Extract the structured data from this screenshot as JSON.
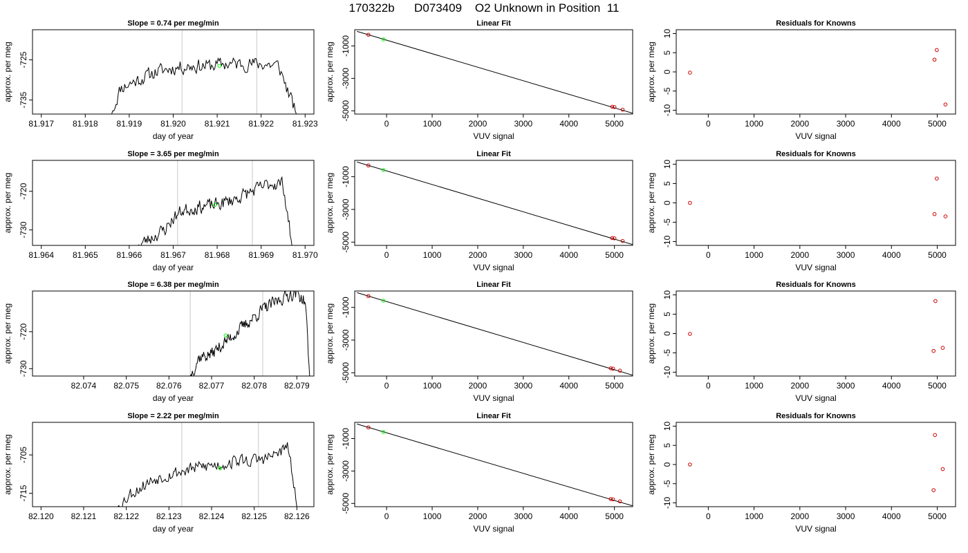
{
  "figure": {
    "title": "170322b      D073409    O2 Unknown in Position  11"
  },
  "chart_data": [
    {
      "type": "line",
      "title": "Slope =  0.74  per meg/min",
      "xlabel": "day of year",
      "ylabel": "approx. per meg",
      "xlim": [
        81.9168,
        81.9232
      ],
      "ylim": [
        -738.5,
        -717.5
      ],
      "xticks": [
        81.917,
        81.918,
        81.919,
        81.92,
        81.921,
        81.922,
        81.923
      ],
      "xtick_labels": [
        "81.917",
        "81.918",
        "81.919",
        "81.920",
        "81.921",
        "81.922",
        "81.923"
      ],
      "yticks": [
        -735,
        -725
      ],
      "ytick_labels": [
        "-735",
        "-725"
      ],
      "vlines": [
        81.9202,
        81.9219
      ],
      "trace": {
        "start": 81.9186,
        "end": 81.9228,
        "entry": -738.5,
        "exit": -738.5,
        "low": -731,
        "high": -724,
        "mid": -727.5,
        "seed": 11,
        "x": [
          81.9186,
          81.9188,
          81.9192,
          81.9196,
          81.92,
          81.9204,
          81.9208,
          81.9212,
          81.9216,
          81.922,
          81.9224,
          81.9228
        ],
        "y": [
          -738.5,
          -732,
          -730,
          -728,
          -727,
          -726.5,
          -726.5,
          -726,
          -726,
          -726,
          -726.5,
          -738.5
        ]
      },
      "marker": {
        "x": 81.92105,
        "y": -726.5,
        "color": "#00ff00"
      }
    },
    {
      "type": "scatter",
      "title": "Linear Fit",
      "xlabel": "VUV signal",
      "ylabel": "approx. per meg",
      "xlim": [
        -700,
        5400
      ],
      "ylim": [
        -5200,
        0
      ],
      "xticks": [
        0,
        1000,
        2000,
        3000,
        4000,
        5000
      ],
      "xtick_labels": [
        "0",
        "1000",
        "2000",
        "3000",
        "4000",
        "5000"
      ],
      "yticks": [
        -1000,
        -3000,
        -5000
      ],
      "ytick_labels": [
        "-1000",
        "-3000",
        "-5000"
      ],
      "fit_line": [
        [
          -650,
          -100
        ],
        [
          5400,
          -5150
        ]
      ],
      "known_points": [
        [
          -400,
          -310
        ],
        [
          4950,
          -4750
        ],
        [
          5000,
          -4770
        ],
        [
          5180,
          -4930
        ]
      ],
      "unknown_point": [
        -70,
        -595
      ],
      "known_color": "#cc0000",
      "unknown_color": "#00ff00"
    },
    {
      "type": "scatter",
      "title": "Residuals for Knowns",
      "xlabel": "VUV signal",
      "ylabel": "approx. per meg",
      "xlim": [
        -700,
        5400
      ],
      "ylim": [
        -11,
        11
      ],
      "xticks": [
        0,
        1000,
        2000,
        3000,
        4000,
        5000
      ],
      "xtick_labels": [
        "0",
        "1000",
        "2000",
        "3000",
        "4000",
        "5000"
      ],
      "yticks": [
        -10,
        -5,
        0,
        5,
        10
      ],
      "ytick_labels": [
        "-10",
        "-5",
        "0",
        "5",
        "10"
      ],
      "points": [
        [
          -400,
          -0.2
        ],
        [
          4940,
          3.2
        ],
        [
          4990,
          5.7
        ],
        [
          5180,
          -8.5
        ]
      ],
      "color": "#cc0000"
    },
    {
      "type": "line",
      "title": "Slope =  3.65  per meg/min",
      "xlabel": "day of year",
      "ylabel": "approx. per meg",
      "xlim": [
        81.9638,
        81.9702
      ],
      "ylim": [
        -734,
        -712
      ],
      "xticks": [
        81.964,
        81.965,
        81.966,
        81.967,
        81.968,
        81.969,
        81.97
      ],
      "xtick_labels": [
        "81.964",
        "81.965",
        "81.966",
        "81.967",
        "81.968",
        "81.969",
        "81.970"
      ],
      "yticks": [
        -730,
        -720
      ],
      "ytick_labels": [
        "-730",
        "-720"
      ],
      "vlines": [
        81.9671,
        81.9688
      ],
      "trace": {
        "start": 81.9662,
        "end": 81.9697,
        "entry": -734,
        "exit": -734,
        "low": -733,
        "high": -717,
        "mid": -724,
        "seed": 23,
        "x": [
          81.9662,
          81.9665,
          81.9668,
          81.967,
          81.9672,
          81.9676,
          81.968,
          81.9684,
          81.9688,
          81.9692,
          81.9695,
          81.9697
        ],
        "y": [
          -734,
          -732,
          -730,
          -727,
          -725,
          -724,
          -723.5,
          -722,
          -720,
          -718,
          -718,
          -734
        ]
      },
      "marker": {
        "x": 81.96795,
        "y": -723.5,
        "color": "#00ff00"
      }
    },
    {
      "type": "scatter",
      "title": "Linear Fit",
      "xlabel": "VUV signal",
      "ylabel": "approx. per meg",
      "xlim": [
        -700,
        5400
      ],
      "ylim": [
        -5200,
        0
      ],
      "xticks": [
        0,
        1000,
        2000,
        3000,
        4000,
        5000
      ],
      "xtick_labels": [
        "0",
        "1000",
        "2000",
        "3000",
        "4000",
        "5000"
      ],
      "yticks": [
        -1000,
        -3000,
        -5000
      ],
      "ytick_labels": [
        "-1000",
        "-3000",
        "-5000"
      ],
      "fit_line": [
        [
          -650,
          -100
        ],
        [
          5400,
          -5150
        ]
      ],
      "known_points": [
        [
          -400,
          -310
        ],
        [
          4950,
          -4750
        ],
        [
          5000,
          -4770
        ],
        [
          5180,
          -4930
        ]
      ],
      "unknown_point": [
        -70,
        -595
      ],
      "known_color": "#cc0000",
      "unknown_color": "#00ff00"
    },
    {
      "type": "scatter",
      "title": "Residuals for Knowns",
      "xlabel": "VUV signal",
      "ylabel": "approx. per meg",
      "xlim": [
        -700,
        5400
      ],
      "ylim": [
        -11,
        11
      ],
      "xticks": [
        0,
        1000,
        2000,
        3000,
        4000,
        5000
      ],
      "xtick_labels": [
        "0",
        "1000",
        "2000",
        "3000",
        "4000",
        "5000"
      ],
      "yticks": [
        -10,
        -5,
        0,
        5,
        10
      ],
      "ytick_labels": [
        "-10",
        "-5",
        "0",
        "5",
        "10"
      ],
      "points": [
        [
          -400,
          0
        ],
        [
          4940,
          -2.9
        ],
        [
          4990,
          6.3
        ],
        [
          5180,
          -3.5
        ]
      ],
      "color": "#cc0000"
    },
    {
      "type": "line",
      "title": "Slope =  6.38  per meg/min",
      "xlabel": "day of year",
      "ylabel": "approx. per meg",
      "xlim": [
        82.0728,
        82.0794
      ],
      "ylim": [
        -732,
        -709
      ],
      "xticks": [
        82.074,
        82.075,
        82.076,
        82.077,
        82.078,
        82.079
      ],
      "xtick_labels": [
        "82.074",
        "82.075",
        "82.076",
        "82.077",
        "82.078",
        "82.079"
      ],
      "yticks": [
        -730,
        -720
      ],
      "ytick_labels": [
        "-730",
        "-720"
      ],
      "vlines": [
        82.0765,
        82.0782
      ],
      "trace": {
        "start": 82.0765,
        "end": 82.0793,
        "entry": -732,
        "exit": -732,
        "low": -729,
        "high": -709,
        "mid": -720,
        "seed": 37,
        "x": [
          82.0765,
          82.0767,
          82.077,
          82.0773,
          82.0776,
          82.0779,
          82.0782,
          82.0785,
          82.0788,
          82.079,
          82.0792,
          82.0793
        ],
        "y": [
          -732,
          -727,
          -726,
          -723,
          -720,
          -717,
          -714,
          -712,
          -710,
          -709.5,
          -712,
          -732
        ]
      },
      "marker": {
        "x": 82.07733,
        "y": -721,
        "color": "#00ff00"
      }
    },
    {
      "type": "scatter",
      "title": "Linear Fit",
      "xlabel": "VUV signal",
      "ylabel": "approx. per meg",
      "xlim": [
        -700,
        5400
      ],
      "ylim": [
        -5200,
        0
      ],
      "xticks": [
        0,
        1000,
        2000,
        3000,
        4000,
        5000
      ],
      "xtick_labels": [
        "0",
        "1000",
        "2000",
        "3000",
        "4000",
        "5000"
      ],
      "yticks": [
        -1000,
        -3000,
        -5000
      ],
      "ytick_labels": [
        "-1000",
        "-3000",
        "-5000"
      ],
      "fit_line": [
        [
          -650,
          -100
        ],
        [
          5400,
          -5150
        ]
      ],
      "known_points": [
        [
          -400,
          -310
        ],
        [
          4920,
          -4730
        ],
        [
          4970,
          -4750
        ],
        [
          5120,
          -4870
        ]
      ],
      "unknown_point": [
        -70,
        -595
      ],
      "known_color": "#cc0000",
      "unknown_color": "#00ff00"
    },
    {
      "type": "scatter",
      "title": "Residuals for Knowns",
      "xlabel": "VUV signal",
      "ylabel": "approx. per meg",
      "xlim": [
        -700,
        5400
      ],
      "ylim": [
        -11,
        11
      ],
      "xticks": [
        0,
        1000,
        2000,
        3000,
        4000,
        5000
      ],
      "xtick_labels": [
        "0",
        "1000",
        "2000",
        "3000",
        "4000",
        "5000"
      ],
      "yticks": [
        -10,
        -5,
        0,
        5,
        10
      ],
      "ytick_labels": [
        "-10",
        "-5",
        "0",
        "5",
        "10"
      ],
      "points": [
        [
          -400,
          -0.1
        ],
        [
          4920,
          -4.5
        ],
        [
          4960,
          8.4
        ],
        [
          5120,
          -3.7
        ]
      ],
      "color": "#cc0000"
    },
    {
      "type": "line",
      "title": "Slope =  2.22  per meg/min",
      "xlabel": "day of year",
      "ylabel": "approx. per meg",
      "xlim": [
        82.1198,
        82.1264
      ],
      "ylim": [
        -718.5,
        -696.5
      ],
      "xticks": [
        82.12,
        82.121,
        82.122,
        82.123,
        82.124,
        82.125,
        82.126
      ],
      "xtick_labels": [
        "82.120",
        "82.121",
        "82.122",
        "82.123",
        "82.124",
        "82.125",
        "82.126"
      ],
      "yticks": [
        -715,
        -705
      ],
      "ytick_labels": [
        "-715",
        "-705"
      ],
      "vlines": [
        82.1233,
        82.1251
      ],
      "trace": {
        "start": 82.1218,
        "end": 82.126,
        "entry": -718.5,
        "exit": -718.5,
        "low": -716,
        "high": -701,
        "mid": -708,
        "seed": 53,
        "x": [
          82.1218,
          82.1221,
          82.1224,
          82.1227,
          82.123,
          82.1234,
          82.1238,
          82.1242,
          82.1246,
          82.125,
          82.1254,
          82.1258,
          82.126
        ],
        "y": [
          -718.5,
          -715,
          -713,
          -711,
          -710,
          -709,
          -708,
          -707.5,
          -706.5,
          -706.5,
          -705.5,
          -703,
          -718.5
        ]
      },
      "marker": {
        "x": 82.1242,
        "y": -708.5,
        "color": "#00ff00"
      }
    },
    {
      "type": "scatter",
      "title": "Linear Fit",
      "xlabel": "VUV signal",
      "ylabel": "approx. per meg",
      "xlim": [
        -700,
        5400
      ],
      "ylim": [
        -5200,
        0
      ],
      "xticks": [
        0,
        1000,
        2000,
        3000,
        4000,
        5000
      ],
      "xtick_labels": [
        "0",
        "1000",
        "2000",
        "3000",
        "4000",
        "5000"
      ],
      "yticks": [
        -1000,
        -3000,
        -5000
      ],
      "ytick_labels": [
        "-1000",
        "-3000",
        "-5000"
      ],
      "fit_line": [
        [
          -650,
          -100
        ],
        [
          5400,
          -5150
        ]
      ],
      "known_points": [
        [
          -400,
          -310
        ],
        [
          4920,
          -4730
        ],
        [
          4970,
          -4750
        ],
        [
          5120,
          -4870
        ]
      ],
      "unknown_point": [
        -70,
        -595
      ],
      "known_color": "#cc0000",
      "unknown_color": "#00ff00"
    },
    {
      "type": "scatter",
      "title": "Residuals for Knowns",
      "xlabel": "VUV signal",
      "ylabel": "approx. per meg",
      "xlim": [
        -700,
        5400
      ],
      "ylim": [
        -11,
        11
      ],
      "xticks": [
        0,
        1000,
        2000,
        3000,
        4000,
        5000
      ],
      "xtick_labels": [
        "0",
        "1000",
        "2000",
        "3000",
        "4000",
        "5000"
      ],
      "yticks": [
        -10,
        -5,
        0,
        5,
        10
      ],
      "ytick_labels": [
        "-10",
        "-5",
        "0",
        "5",
        "10"
      ],
      "points": [
        [
          -400,
          0
        ],
        [
          4920,
          -6.7
        ],
        [
          4950,
          7.7
        ],
        [
          5120,
          -1.2
        ]
      ],
      "color": "#cc0000"
    }
  ]
}
